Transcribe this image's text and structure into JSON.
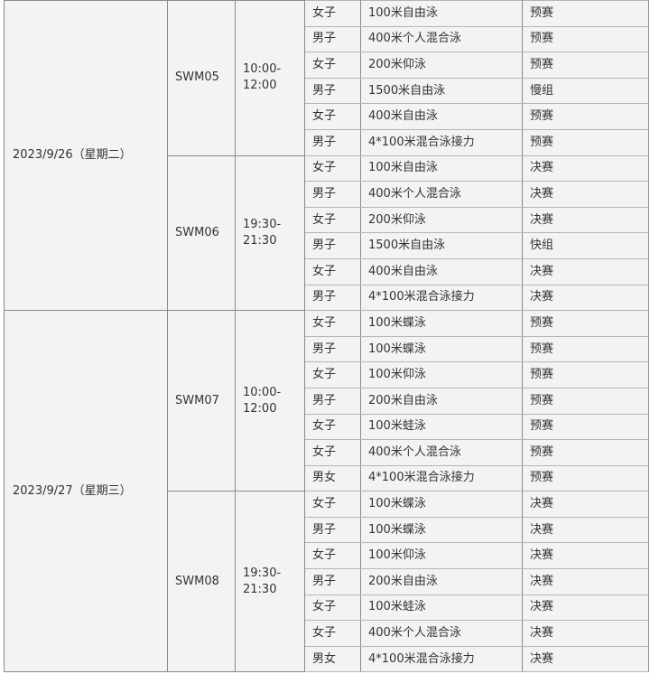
{
  "schedule": [
    {
      "date": "2023/9/26（星期二）",
      "sessions": [
        {
          "code": "SWM05",
          "time": "10:00-12:00",
          "events": [
            [
              "女子",
              "100米自由泳",
              "预赛"
            ],
            [
              "男子",
              "400米个人混合泳",
              "预赛"
            ],
            [
              "女子",
              "200米仰泳",
              "预赛"
            ],
            [
              "男子",
              "1500米自由泳",
              "慢组"
            ],
            [
              "女子",
              "400米自由泳",
              "预赛"
            ],
            [
              "男子",
              "4*100米混合泳接力",
              "预赛"
            ]
          ]
        },
        {
          "code": "SWM06",
          "time": "19:30-21:30",
          "events": [
            [
              "女子",
              "100米自由泳",
              "决赛"
            ],
            [
              "男子",
              "400米个人混合泳",
              "决赛"
            ],
            [
              "女子",
              "200米仰泳",
              "决赛"
            ],
            [
              "男子",
              "1500米自由泳",
              "快组"
            ],
            [
              "女子",
              "400米自由泳",
              "决赛"
            ],
            [
              "男子",
              "4*100米混合泳接力",
              "决赛"
            ]
          ]
        }
      ]
    },
    {
      "date": "2023/9/27（星期三）",
      "sessions": [
        {
          "code": "SWM07",
          "time": "10:00-12:00",
          "events": [
            [
              "女子",
              "100米蝶泳",
              "预赛"
            ],
            [
              "男子",
              "100米蝶泳",
              "预赛"
            ],
            [
              "女子",
              "100米仰泳",
              "预赛"
            ],
            [
              "男子",
              "200米自由泳",
              "预赛"
            ],
            [
              "女子",
              "100米蛙泳",
              "预赛"
            ],
            [
              "女子",
              "400米个人混合泳",
              "预赛"
            ],
            [
              "男女",
              "4*100米混合泳接力",
              "预赛"
            ]
          ]
        },
        {
          "code": "SWM08",
          "time": "19:30-21:30",
          "events": [
            [
              "女子",
              "100米蝶泳",
              "决赛"
            ],
            [
              "男子",
              "100米蝶泳",
              "决赛"
            ],
            [
              "女子",
              "100米仰泳",
              "决赛"
            ],
            [
              "男子",
              "200米自由泳",
              "决赛"
            ],
            [
              "女子",
              "100米蛙泳",
              "决赛"
            ],
            [
              "女子",
              "400米个人混合泳",
              "决赛"
            ],
            [
              "男女",
              "4*100米混合泳接力",
              "决赛"
            ]
          ]
        }
      ]
    }
  ]
}
